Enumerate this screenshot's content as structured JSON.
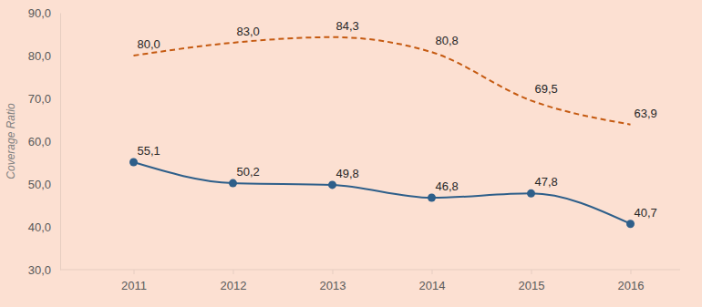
{
  "chart_data": {
    "type": "line",
    "ylabel": "Coverage Ratio",
    "categories": [
      "2011",
      "2012",
      "2013",
      "2014",
      "2015",
      "2016"
    ],
    "series": [
      {
        "color": "#c55a11",
        "line_style": "dashed",
        "marker": "none",
        "values": [
          80.0,
          83.0,
          84.3,
          80.8,
          69.5,
          63.9
        ],
        "value_labels": [
          "80,0",
          "83,0",
          "84,3",
          "80,8",
          "69,5",
          "63,9"
        ]
      },
      {
        "color": "#2e5f8a",
        "line_style": "solid",
        "marker": "circle",
        "values": [
          55.1,
          50.2,
          49.8,
          46.8,
          47.8,
          40.7
        ],
        "value_labels": [
          "55,1",
          "50,2",
          "49,8",
          "46,8",
          "47,8",
          "40,7"
        ]
      }
    ],
    "ylim": [
      30,
      90
    ],
    "yticks": [
      {
        "value": 30,
        "label": "30,0"
      },
      {
        "value": 40,
        "label": "40,0"
      },
      {
        "value": 50,
        "label": "50,0"
      },
      {
        "value": 60,
        "label": "60,0"
      },
      {
        "value": 70,
        "label": "70,0"
      },
      {
        "value": 80,
        "label": "80,0"
      },
      {
        "value": 90,
        "label": "90,0"
      }
    ],
    "grid": false,
    "data_labels": true
  }
}
